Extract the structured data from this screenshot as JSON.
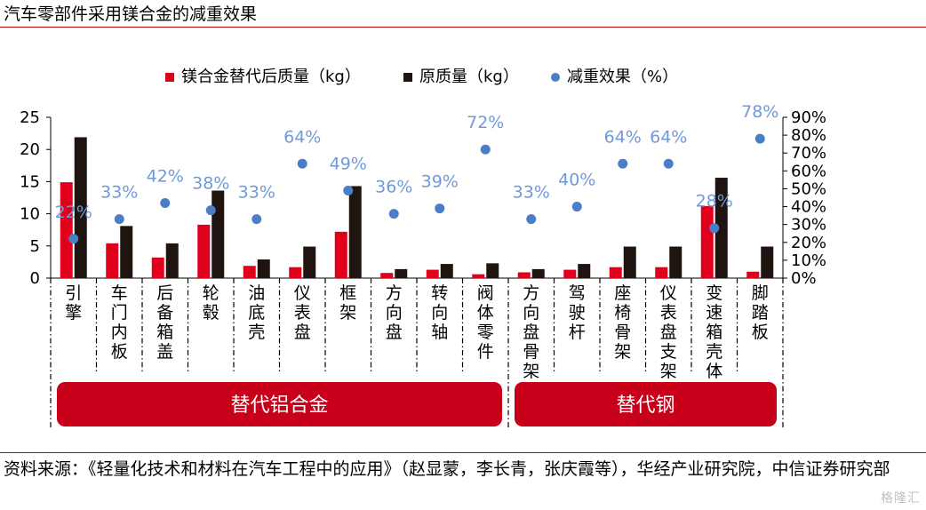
{
  "page": {
    "title": "汽车零部件采用镁合金的减重效果",
    "source": "资料来源：《轻量化技术和材料在汽车工程中的应用》（赵显蒙，李长青，张庆霞等），华经产业研究院，中信证券研究部",
    "watermark": "格隆汇"
  },
  "colors": {
    "red": "#e0001b",
    "dark": "#1f1410",
    "dot": "#4a7fc8",
    "pct_label": "#6f9ad8",
    "rule": "#c00000",
    "group_box": "#c9001a"
  },
  "chart_data": {
    "type": "bar",
    "title": "",
    "categories": [
      "引擎",
      "车门内板",
      "后备箱盖",
      "轮毂",
      "油底壳",
      "仪表盘",
      "框架",
      "方向盘",
      "转向轴",
      "阀体零件",
      "方向盘骨架",
      "驾驶杆",
      "座椅骨架",
      "仪表盘支架",
      "变速箱壳体",
      "脚踏板"
    ],
    "series": [
      {
        "name": "镁合金替代后质量（kg）",
        "type": "bar",
        "axis": "left",
        "color": "#e0001b",
        "values": [
          14.9,
          5.4,
          3.2,
          8.3,
          1.9,
          1.7,
          7.2,
          0.8,
          1.3,
          0.6,
          0.9,
          1.3,
          1.7,
          1.7,
          11.2,
          1.0
        ]
      },
      {
        "name": "原质量（kg）",
        "type": "bar",
        "axis": "left",
        "color": "#1f1410",
        "values": [
          21.9,
          8.1,
          5.4,
          13.6,
          2.9,
          4.9,
          14.3,
          1.4,
          2.2,
          2.3,
          1.4,
          2.2,
          4.9,
          4.9,
          15.6,
          4.9
        ]
      },
      {
        "name": "减重效果（%）",
        "type": "scatter",
        "axis": "right",
        "color": "#4a7fc8",
        "values": [
          22,
          33,
          42,
          38,
          33,
          64,
          49,
          36,
          39,
          72,
          33,
          40,
          64,
          64,
          28,
          78
        ],
        "labels": [
          "22%",
          "33%",
          "42%",
          "38%",
          "33%",
          "64%",
          "49%",
          "36%",
          "39%",
          "72%",
          "33%",
          "40%",
          "64%",
          "64%",
          "28%",
          "78%"
        ]
      }
    ],
    "y_left": {
      "ticks": [
        "0",
        "5",
        "10",
        "15",
        "20",
        "25"
      ],
      "ylim": [
        0,
        25
      ]
    },
    "y_right": {
      "ticks": [
        "0%",
        "10%",
        "20%",
        "30%",
        "40%",
        "50%",
        "60%",
        "70%",
        "80%",
        "90%"
      ],
      "ylim": [
        0,
        90
      ]
    },
    "groups": [
      {
        "label": "替代铝合金",
        "start": 0,
        "end": 9
      },
      {
        "label": "替代钢",
        "start": 10,
        "end": 15
      }
    ],
    "legend_position": "top-center",
    "grid": false
  }
}
